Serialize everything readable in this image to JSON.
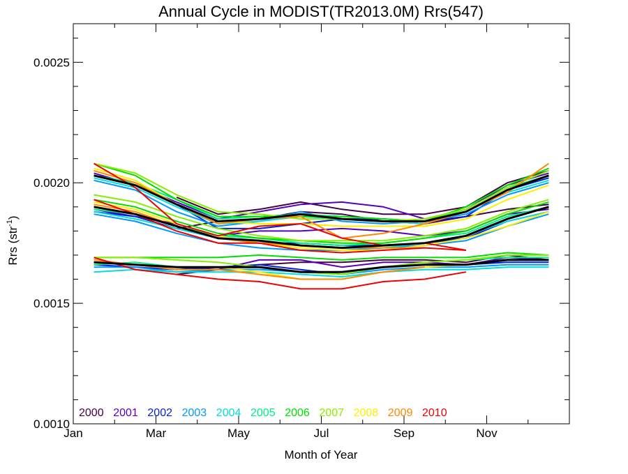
{
  "chart_data": {
    "type": "line",
    "title": "Annual Cycle in MODIST(TR2013.0M) Rrs(547)",
    "xlabel": "Month of Year",
    "ylabel": "Rrs (str",
    "ylabel_superscript": "-1",
    "ylabel_suffix": ")",
    "xlim": [
      1,
      13
    ],
    "ylim": [
      0.001,
      0.00266
    ],
    "x_ticks": [
      {
        "value": 1,
        "label": "Jan"
      },
      {
        "value": 3,
        "label": "Mar"
      },
      {
        "value": 5,
        "label": "May"
      },
      {
        "value": 7,
        "label": "Jul"
      },
      {
        "value": 9,
        "label": "Sep"
      },
      {
        "value": 11,
        "label": "Nov"
      }
    ],
    "y_ticks": [
      {
        "value": 0.001,
        "label": "0.0010"
      },
      {
        "value": 0.0015,
        "label": "0.0015"
      },
      {
        "value": 0.002,
        "label": "0.0020"
      },
      {
        "value": 0.0025,
        "label": "0.0025"
      }
    ],
    "x_minor_ticks": [
      2,
      4,
      6,
      8,
      10,
      12
    ],
    "y_minor_ticks": [
      0.0011,
      0.0012,
      0.0013,
      0.0014,
      0.0016,
      0.0017,
      0.0018,
      0.0019,
      0.0021,
      0.0022,
      0.0023,
      0.0024,
      0.0026
    ],
    "x": [
      1.5,
      2.5,
      3.5,
      4.5,
      5.5,
      6.5,
      7.5,
      8.5,
      9.5,
      10.5,
      11.5,
      12.5
    ],
    "legend_placement": "bottom-left",
    "series": [
      {
        "name": "2000",
        "color": "#440044",
        "lines": [
          [
            null,
            null,
            0.00162,
            0.00164,
            0.00166,
            0.00167,
            0.00167,
            0.00168,
            0.00168,
            0.00167,
            0.0017,
            0.00168
          ],
          [
            null,
            null,
            0.00181,
            0.00184,
            0.00185,
            0.00188,
            0.00187,
            0.00184,
            0.00183,
            0.00186,
            0.00189,
            0.00191
          ],
          [
            null,
            null,
            0.00194,
            0.00187,
            0.00189,
            0.00192,
            0.00189,
            0.00187,
            0.00187,
            0.0019,
            0.002,
            0.00205
          ]
        ]
      },
      {
        "name": "2001",
        "color": "#5500bb",
        "lines": [
          [
            0.00167,
            0.00166,
            0.00165,
            0.00164,
            0.00168,
            0.00168,
            0.00165,
            0.00167,
            0.00167,
            0.00166,
            0.00169,
            0.00168
          ],
          [
            0.00189,
            0.00186,
            0.00183,
            0.00178,
            0.0018,
            0.0018,
            0.00181,
            0.0018,
            0.00178,
            0.0018,
            0.00187,
            0.00189
          ],
          [
            0.00204,
            0.00199,
            0.00192,
            0.00185,
            0.00188,
            0.00191,
            0.00192,
            0.0019,
            0.00185,
            0.00189,
            0.00199,
            0.00204
          ]
        ]
      },
      {
        "name": "2002",
        "color": "#0022dd",
        "lines": [
          [
            0.00166,
            0.00165,
            0.00164,
            0.00165,
            0.00166,
            0.00164,
            0.00162,
            0.00165,
            0.00166,
            0.00166,
            0.00167,
            0.00167
          ],
          [
            0.00188,
            0.00186,
            0.00181,
            0.00177,
            0.00175,
            0.00175,
            0.00174,
            0.00174,
            0.00175,
            0.00177,
            0.00184,
            0.00188
          ],
          [
            0.00203,
            0.00199,
            0.00191,
            0.00181,
            0.00181,
            0.00183,
            0.00185,
            0.00185,
            0.00184,
            0.00186,
            0.00197,
            0.00202
          ]
        ]
      },
      {
        "name": "2003",
        "color": "#0099ff",
        "lines": [
          [
            0.00165,
            0.00165,
            0.00163,
            0.00164,
            0.00164,
            0.00163,
            0.00162,
            0.00164,
            0.00165,
            0.00165,
            0.00166,
            0.00166
          ],
          [
            0.00187,
            0.00184,
            0.00179,
            0.00175,
            0.00173,
            0.00172,
            0.00172,
            0.00173,
            0.00174,
            0.00176,
            0.00182,
            0.00187
          ],
          [
            0.00201,
            0.00197,
            0.00188,
            0.00182,
            0.00184,
            0.00188,
            0.00184,
            0.00183,
            0.00184,
            0.00187,
            0.00195,
            0.002
          ]
        ]
      },
      {
        "name": "2004",
        "color": "#00dddd",
        "lines": [
          [
            0.00163,
            0.00164,
            0.00163,
            0.00163,
            0.00163,
            0.00162,
            0.00161,
            0.00163,
            0.00164,
            0.00164,
            0.00165,
            0.00165
          ],
          [
            0.00188,
            0.00185,
            0.00181,
            0.00177,
            0.00175,
            0.00174,
            0.00173,
            0.00173,
            0.00175,
            0.00178,
            0.00184,
            0.00188
          ],
          [
            0.00202,
            0.00198,
            0.0019,
            0.00183,
            0.00184,
            0.00186,
            0.00185,
            0.00184,
            0.00183,
            0.00188,
            0.00196,
            0.00201
          ]
        ]
      },
      {
        "name": "2005",
        "color": "#00ee88",
        "lines": [
          [
            0.00166,
            0.00167,
            0.00165,
            0.00165,
            0.00165,
            0.00163,
            0.00163,
            0.00165,
            0.00167,
            0.00168,
            0.00169,
            0.00169
          ],
          [
            0.00189,
            0.00187,
            0.00182,
            0.00178,
            0.00177,
            0.00175,
            0.00174,
            0.00175,
            0.00177,
            0.00179,
            0.00186,
            0.0019
          ],
          [
            0.00203,
            0.002,
            0.00193,
            0.00185,
            0.00186,
            0.00187,
            0.00186,
            0.00185,
            0.00184,
            0.00189,
            0.00198,
            0.00203
          ]
        ]
      },
      {
        "name": "2006",
        "color": "#00dd00",
        "lines": [
          [
            0.00169,
            0.00169,
            0.00169,
            0.00169,
            0.0017,
            0.00169,
            0.00168,
            0.00169,
            0.00169,
            0.00169,
            0.00171,
            0.0017
          ],
          [
            0.00193,
            0.0019,
            0.00184,
            0.00179,
            0.00177,
            0.00176,
            0.00175,
            0.00175,
            0.00177,
            0.0018,
            0.00187,
            0.00192
          ],
          [
            0.00208,
            0.00203,
            0.00193,
            0.00186,
            0.00186,
            0.00186,
            0.00186,
            0.00185,
            0.00184,
            0.0019,
            0.00199,
            0.00206
          ]
        ]
      },
      {
        "name": "2007",
        "color": "#88ee00",
        "lines": [
          [
            0.00169,
            0.00169,
            0.00168,
            0.00167,
            0.00165,
            0.00163,
            0.00162,
            0.00165,
            0.00167,
            0.00168,
            0.0017,
            0.0017
          ],
          [
            0.00195,
            0.00192,
            0.00186,
            0.00181,
            0.00178,
            0.00176,
            0.00176,
            0.00176,
            0.00178,
            0.00181,
            0.00188,
            0.00193
          ],
          [
            0.00208,
            0.00204,
            0.00195,
            0.00188,
            0.00187,
            0.00185,
            0.00185,
            0.00184,
            0.00185,
            0.00189,
            0.00198,
            0.00205
          ]
        ]
      },
      {
        "name": "2008",
        "color": "#ffee00",
        "lines": [
          [
            0.00167,
            0.00166,
            0.00165,
            0.00165,
            0.00163,
            0.0016,
            0.0016,
            0.00163,
            0.00165,
            0.00166,
            0.00168,
            0.00168
          ],
          [
            0.00192,
            0.00189,
            0.00183,
            0.00178,
            0.00175,
            0.00173,
            0.00172,
            0.00172,
            0.00174,
            0.00177,
            0.00182,
            0.00188
          ],
          [
            0.00206,
            0.00201,
            0.00191,
            0.00184,
            0.00183,
            0.00183,
            0.00182,
            0.00182,
            0.00182,
            0.00185,
            0.00193,
            0.00199
          ]
        ]
      },
      {
        "name": "2009",
        "color": "#ff8800",
        "lines": [
          [
            0.00168,
            0.00166,
            0.00164,
            0.00164,
            0.00162,
            0.0016,
            0.0016,
            0.00163,
            0.00165,
            null,
            null,
            null
          ],
          [
            0.00191,
            0.00188,
            0.00182,
            0.00177,
            0.00175,
            0.00174,
            0.00173,
            0.00173,
            0.00173,
            null,
            null,
            null
          ],
          [
            0.00205,
            0.002,
            0.00191,
            0.00183,
            0.00185,
            0.00186,
            0.00177,
            0.00179,
            0.00183,
            0.00188,
            0.00196,
            0.00208
          ]
        ]
      },
      {
        "name": "2010",
        "color": "#ee0000",
        "lines": [
          [
            0.00169,
            0.00164,
            0.00162,
            0.0016,
            0.00159,
            0.00156,
            0.00156,
            0.00159,
            0.0016,
            0.00163,
            null,
            null
          ],
          [
            0.00193,
            0.00187,
            0.0018,
            0.00175,
            0.00175,
            0.00172,
            0.00171,
            0.00172,
            0.00173,
            0.00172,
            null,
            null
          ],
          [
            0.00208,
            0.00198,
            0.00183,
            0.00178,
            0.00182,
            0.00183,
            0.00177,
            0.00174,
            0.00175,
            0.00172,
            null,
            null
          ]
        ]
      }
    ],
    "climatology": {
      "color": "#000000",
      "lines": [
        [
          0.00167,
          0.00166,
          0.00165,
          0.00165,
          0.00165,
          0.00163,
          0.00163,
          0.00165,
          0.00166,
          0.00166,
          0.00168,
          0.00168
        ],
        [
          0.0019,
          0.00187,
          0.00182,
          0.00177,
          0.00176,
          0.00174,
          0.00173,
          0.00174,
          0.00175,
          0.00178,
          0.00185,
          0.0019
        ],
        [
          0.00203,
          0.00199,
          0.00191,
          0.00184,
          0.00185,
          0.00187,
          0.00185,
          0.00184,
          0.00184,
          0.00188,
          0.00197,
          0.00203
        ]
      ]
    }
  }
}
